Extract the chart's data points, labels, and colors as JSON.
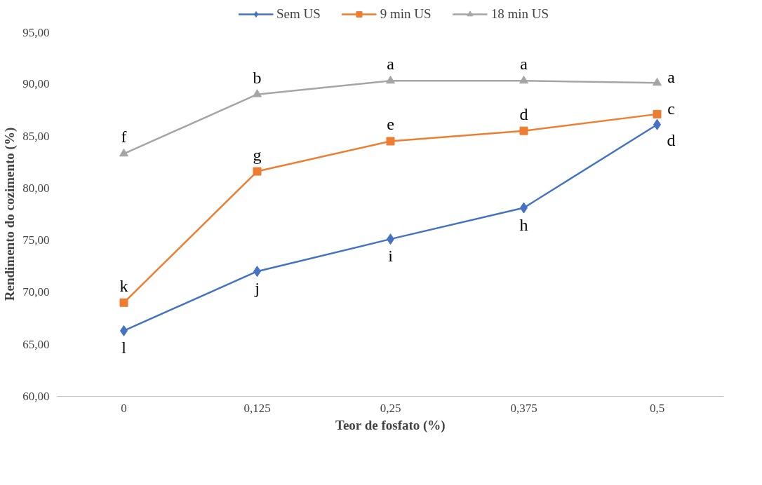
{
  "chart_data": {
    "type": "line",
    "xlabel": "Teor de fosfato (%)",
    "ylabel": "Rendimento do cozimento (%)",
    "categories": [
      "0",
      "0,125",
      "0,25",
      "0,375",
      "0,5"
    ],
    "series": [
      {
        "name": "Sem US",
        "color": "#4472c4",
        "marker": "diamond",
        "values": [
          66.3,
          72.0,
          75.1,
          78.1,
          86.1
        ]
      },
      {
        "name": "9 min US",
        "color": "#ed7d31",
        "marker": "square",
        "values": [
          69.0,
          81.6,
          84.5,
          85.5,
          87.1
        ]
      },
      {
        "name": "18 min US",
        "color": "#a5a5a5",
        "marker": "triangle",
        "values": [
          83.3,
          89.0,
          90.3,
          90.3,
          90.1
        ]
      }
    ],
    "ylim": [
      60,
      95
    ],
    "yticks": [
      {
        "value": 60,
        "label": "60,00"
      },
      {
        "value": 65,
        "label": "65,00"
      },
      {
        "value": 70,
        "label": "70,00"
      },
      {
        "value": 75,
        "label": "75,00"
      },
      {
        "value": 80,
        "label": "80,00"
      },
      {
        "value": 85,
        "label": "85,00"
      },
      {
        "value": 90,
        "label": "90,00"
      },
      {
        "value": 95,
        "label": "95,00"
      }
    ],
    "annotations": [
      {
        "text": "l",
        "x": "0",
        "y": 66.3
      },
      {
        "text": "j",
        "x": "0,125",
        "y": 72.0
      },
      {
        "text": "i",
        "x": "0,25",
        "y": 75.1
      },
      {
        "text": "h",
        "x": "0,375",
        "y": 78.1
      },
      {
        "text": "d",
        "x": "0,5",
        "y": 86.1
      },
      {
        "text": "k",
        "x": "0",
        "y": 69.0
      },
      {
        "text": "g",
        "x": "0,125",
        "y": 81.6
      },
      {
        "text": "e",
        "x": "0,25",
        "y": 84.5
      },
      {
        "text": "d",
        "x": "0,375",
        "y": 85.5
      },
      {
        "text": "c",
        "x": "0,5",
        "y": 87.1
      },
      {
        "text": "f",
        "x": "0",
        "y": 83.3
      },
      {
        "text": "b",
        "x": "0,125",
        "y": 89.0
      },
      {
        "text": "a",
        "x": "0,25",
        "y": 90.3
      },
      {
        "text": "a",
        "x": "0,375",
        "y": 90.3
      },
      {
        "text": "a",
        "x": "0,5",
        "y": 90.1
      }
    ],
    "grid": false,
    "legend": "top",
    "line_style": "solid"
  }
}
